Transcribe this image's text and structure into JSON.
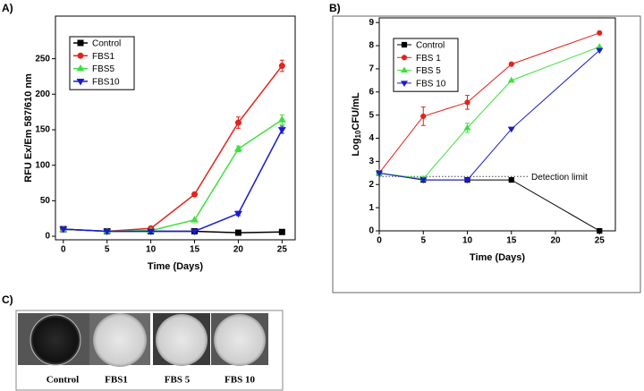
{
  "panel_labels": [
    "A)",
    "B)",
    "C)"
  ],
  "chart_data": [
    {
      "type": "line",
      "xlabel": "Time (Days)",
      "ylabel": "RFU Ex/Em 587/610 nm",
      "x": [
        0,
        5,
        10,
        15,
        20,
        25
      ],
      "xlim": [
        -0.9,
        26.5
      ],
      "ylim": [
        -5,
        310
      ],
      "xticks": [
        0,
        5,
        10,
        15,
        20,
        25
      ],
      "yticks": [
        0,
        50,
        100,
        150,
        200,
        250
      ],
      "legend": "upper left",
      "series": [
        {
          "name": "Control",
          "color": "#000000",
          "marker": "square",
          "values": [
            10,
            7,
            7,
            7,
            5,
            6
          ],
          "errors": [
            0,
            0,
            0,
            0,
            0,
            0
          ]
        },
        {
          "name": "FBS1",
          "color": "#e3231d",
          "marker": "circle",
          "values": [
            10,
            7,
            11,
            59,
            160,
            240
          ],
          "errors": [
            0,
            0,
            0,
            0,
            8,
            8
          ]
        },
        {
          "name": "FBS5",
          "color": "#3ee03e",
          "marker": "triangle-up",
          "values": [
            10,
            7,
            8,
            23,
            123,
            164
          ],
          "errors": [
            0,
            0,
            0,
            0,
            4,
            7
          ]
        },
        {
          "name": "FBS10",
          "color": "#1a1ad0",
          "marker": "triangle-down",
          "values": [
            10,
            7,
            7,
            7,
            32,
            150
          ],
          "errors": [
            0,
            0,
            0,
            0,
            3,
            5
          ]
        }
      ]
    },
    {
      "type": "line",
      "xlabel": "Time (Days)",
      "ylabel": [
        "Log",
        "10",
        "CFU/mL"
      ],
      "x": [
        0,
        5,
        10,
        15,
        25
      ],
      "xlim": [
        0,
        26.8
      ],
      "ylim": [
        0,
        9.2
      ],
      "xticks": [
        0,
        5,
        10,
        15,
        20,
        25
      ],
      "yticks": [
        0,
        1,
        2,
        3,
        4,
        5,
        6,
        7,
        8,
        9
      ],
      "legend": "upper left",
      "reference_line": {
        "value": 2.35,
        "label": "Detection limit"
      },
      "series": [
        {
          "name": "Control",
          "color": "#000000",
          "marker": "square",
          "values": [
            2.5,
            2.2,
            2.2,
            2.2,
            0
          ],
          "errors": [
            0,
            0,
            0,
            0,
            0
          ]
        },
        {
          "name": "FBS 1",
          "color": "#e3231d",
          "marker": "circle",
          "values": [
            2.5,
            4.95,
            5.55,
            7.2,
            8.55
          ],
          "errors": [
            0,
            0.4,
            0.3,
            0,
            0
          ]
        },
        {
          "name": "FBS 5",
          "color": "#3ee03e",
          "marker": "triangle-up",
          "values": [
            2.5,
            2.25,
            4.45,
            6.5,
            7.95
          ],
          "errors": [
            0,
            0.1,
            0.2,
            0,
            0
          ]
        },
        {
          "name": "FBS 10",
          "color": "#1a1ad0",
          "marker": "triangle-down",
          "values": [
            2.5,
            2.2,
            2.2,
            4.4,
            7.8
          ],
          "errors": [
            0,
            0,
            0,
            0,
            0
          ]
        }
      ]
    }
  ],
  "photos": {
    "captions": [
      "Control",
      "FBS1",
      "FBS 5",
      "FBS 10"
    ]
  }
}
